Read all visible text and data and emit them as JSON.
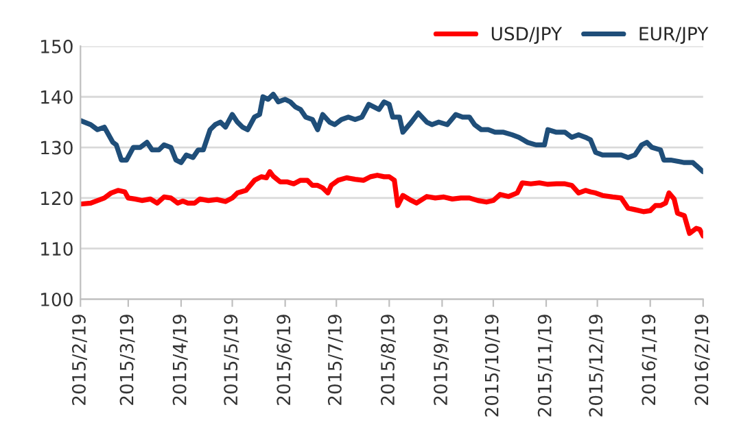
{
  "chart_data": {
    "type": "line",
    "ylim": [
      100,
      150
    ],
    "yticks": [
      100,
      110,
      120,
      130,
      140,
      150
    ],
    "xlim": [
      "2015-02-19",
      "2016-02-19"
    ],
    "xticks": [
      {
        "value": "2015-02-19",
        "label": "2015/2/19"
      },
      {
        "value": "2015-03-19",
        "label": "2015/3/19"
      },
      {
        "value": "2015-04-19",
        "label": "2015/4/19"
      },
      {
        "value": "2015-05-19",
        "label": "2015/5/19"
      },
      {
        "value": "2015-06-19",
        "label": "2015/6/19"
      },
      {
        "value": "2015-07-19",
        "label": "2015/7/19"
      },
      {
        "value": "2015-08-19",
        "label": "2015/8/19"
      },
      {
        "value": "2015-09-19",
        "label": "2015/9/19"
      },
      {
        "value": "2015-10-19",
        "label": "2015/10/19"
      },
      {
        "value": "2015-11-19",
        "label": "2015/11/19"
      },
      {
        "value": "2015-12-19",
        "label": "2015/12/19"
      },
      {
        "value": "2016-01-19",
        "label": "2016/1/19"
      },
      {
        "value": "2016-02-19",
        "label": "2016/2/19"
      }
    ],
    "grid": "y",
    "legend": "top right",
    "marker": "none",
    "line_style": "solid",
    "series": [
      {
        "name": "USD/JPY",
        "color": "#ff0000",
        "x": [
          "2015-02-19",
          "2015-02-25",
          "2015-03-01",
          "2015-03-05",
          "2015-03-09",
          "2015-03-13",
          "2015-03-17",
          "2015-03-19",
          "2015-03-23",
          "2015-03-27",
          "2015-04-01",
          "2015-04-05",
          "2015-04-09",
          "2015-04-13",
          "2015-04-17",
          "2015-04-20",
          "2015-04-23",
          "2015-04-27",
          "2015-04-30",
          "2015-05-05",
          "2015-05-10",
          "2015-05-15",
          "2015-05-19",
          "2015-05-22",
          "2015-05-27",
          "2015-06-01",
          "2015-06-05",
          "2015-06-08",
          "2015-06-10",
          "2015-06-12",
          "2015-06-16",
          "2015-06-20",
          "2015-06-24",
          "2015-06-28",
          "2015-07-02",
          "2015-07-05",
          "2015-07-08",
          "2015-07-11",
          "2015-07-14",
          "2015-07-16",
          "2015-07-20",
          "2015-07-25",
          "2015-07-30",
          "2015-08-04",
          "2015-08-08",
          "2015-08-12",
          "2015-08-16",
          "2015-08-19",
          "2015-08-22",
          "2015-08-24",
          "2015-08-27",
          "2015-09-01",
          "2015-09-04",
          "2015-09-10",
          "2015-09-15",
          "2015-09-20",
          "2015-09-25",
          "2015-09-30",
          "2015-10-05",
          "2015-10-10",
          "2015-10-15",
          "2015-10-19",
          "2015-10-23",
          "2015-10-28",
          "2015-11-02",
          "2015-11-05",
          "2015-11-10",
          "2015-11-15",
          "2015-11-20",
          "2015-11-25",
          "2015-11-30",
          "2015-12-04",
          "2015-12-08",
          "2015-12-12",
          "2015-12-15",
          "2015-12-18",
          "2015-12-22",
          "2015-12-28",
          "2016-01-02",
          "2016-01-06",
          "2016-01-10",
          "2016-01-15",
          "2016-01-19",
          "2016-01-22",
          "2016-01-25",
          "2016-01-28",
          "2016-01-30",
          "2016-02-02",
          "2016-02-04",
          "2016-02-08",
          "2016-02-11",
          "2016-02-15",
          "2016-02-17",
          "2016-02-19"
        ],
        "values": [
          118.8,
          119,
          119.5,
          120,
          121,
          121.5,
          121.2,
          120,
          119.8,
          119.5,
          119.8,
          119,
          120.2,
          120,
          119,
          119.4,
          119,
          119,
          119.8,
          119.5,
          119.7,
          119.3,
          120,
          121,
          121.5,
          123.5,
          124.2,
          124,
          125.2,
          124.3,
          123.2,
          123.2,
          122.8,
          123.5,
          123.5,
          122.5,
          122.5,
          122,
          121,
          122.5,
          123.5,
          124,
          123.7,
          123.5,
          124.2,
          124.5,
          124.2,
          124.2,
          123.5,
          118.5,
          120.5,
          119.5,
          119,
          120.3,
          120,
          120.2,
          119.8,
          120,
          120,
          119.5,
          119.2,
          119.5,
          120.7,
          120.3,
          121,
          123,
          122.8,
          123,
          122.7,
          122.8,
          122.8,
          122.5,
          121,
          121.5,
          121.2,
          121,
          120.5,
          120.2,
          120,
          118,
          117.7,
          117.3,
          117.5,
          118.5,
          118.5,
          119,
          121,
          119.8,
          117,
          116.5,
          113,
          114,
          113.8,
          112.5
        ]
      },
      {
        "name": "EUR/JPY",
        "color": "#1f4e79",
        "x": [
          "2015-02-19",
          "2015-02-25",
          "2015-03-01",
          "2015-03-05",
          "2015-03-10",
          "2015-03-12",
          "2015-03-15",
          "2015-03-18",
          "2015-03-22",
          "2015-03-26",
          "2015-03-30",
          "2015-04-02",
          "2015-04-06",
          "2015-04-09",
          "2015-04-13",
          "2015-04-16",
          "2015-04-19",
          "2015-04-22",
          "2015-04-26",
          "2015-04-29",
          "2015-05-02",
          "2015-05-06",
          "2015-05-09",
          "2015-05-12",
          "2015-05-15",
          "2015-05-19",
          "2015-05-22",
          "2015-05-25",
          "2015-05-28",
          "2015-06-01",
          "2015-06-04",
          "2015-06-06",
          "2015-06-09",
          "2015-06-12",
          "2015-06-15",
          "2015-06-19",
          "2015-06-22",
          "2015-06-25",
          "2015-06-28",
          "2015-07-01",
          "2015-07-05",
          "2015-07-08",
          "2015-07-11",
          "2015-07-15",
          "2015-07-18",
          "2015-07-22",
          "2015-07-26",
          "2015-07-30",
          "2015-08-03",
          "2015-08-07",
          "2015-08-10",
          "2015-08-13",
          "2015-08-16",
          "2015-08-19",
          "2015-08-21",
          "2015-08-25",
          "2015-08-27",
          "2015-09-01",
          "2015-09-05",
          "2015-09-10",
          "2015-09-13",
          "2015-09-17",
          "2015-09-22",
          "2015-09-27",
          "2015-10-01",
          "2015-10-05",
          "2015-10-08",
          "2015-10-12",
          "2015-10-16",
          "2015-10-20",
          "2015-10-25",
          "2015-10-30",
          "2015-11-03",
          "2015-11-08",
          "2015-11-13",
          "2015-11-18",
          "2015-11-20",
          "2015-11-25",
          "2015-11-30",
          "2015-12-04",
          "2015-12-08",
          "2015-12-12",
          "2015-12-15",
          "2015-12-18",
          "2015-12-22",
          "2015-12-28",
          "2016-01-02",
          "2016-01-06",
          "2016-01-10",
          "2016-01-14",
          "2016-01-17",
          "2016-01-20",
          "2016-01-25",
          "2016-01-27",
          "2016-01-31",
          "2016-02-05",
          "2016-02-08",
          "2016-02-13",
          "2016-02-19"
        ],
        "values": [
          135.3,
          134.5,
          133.5,
          134,
          131,
          130.5,
          127.5,
          127.5,
          130,
          130,
          131,
          129.5,
          129.5,
          130.5,
          130,
          127.5,
          127,
          128.5,
          128,
          129.5,
          129.5,
          133.5,
          134.5,
          135,
          134,
          136.5,
          135,
          134,
          133.5,
          136,
          136.5,
          140,
          139.5,
          140.5,
          139,
          139.5,
          139,
          138,
          137.5,
          136,
          135.5,
          133.5,
          136.5,
          135,
          134.5,
          135.5,
          136,
          135.5,
          136,
          138.5,
          138,
          137.5,
          139,
          138.5,
          136,
          136,
          133,
          135,
          136.8,
          135,
          134.5,
          135,
          134.5,
          136.5,
          136,
          136,
          134.5,
          133.5,
          133.5,
          133,
          133,
          132.5,
          132,
          131,
          130.5,
          130.5,
          133.5,
          133,
          133,
          132,
          132.5,
          132,
          131.5,
          129,
          128.5,
          128.5,
          128.5,
          128,
          128.5,
          130.5,
          131,
          130,
          129.5,
          127.5,
          127.5,
          127.2,
          127,
          127,
          125.2
        ]
      }
    ]
  }
}
